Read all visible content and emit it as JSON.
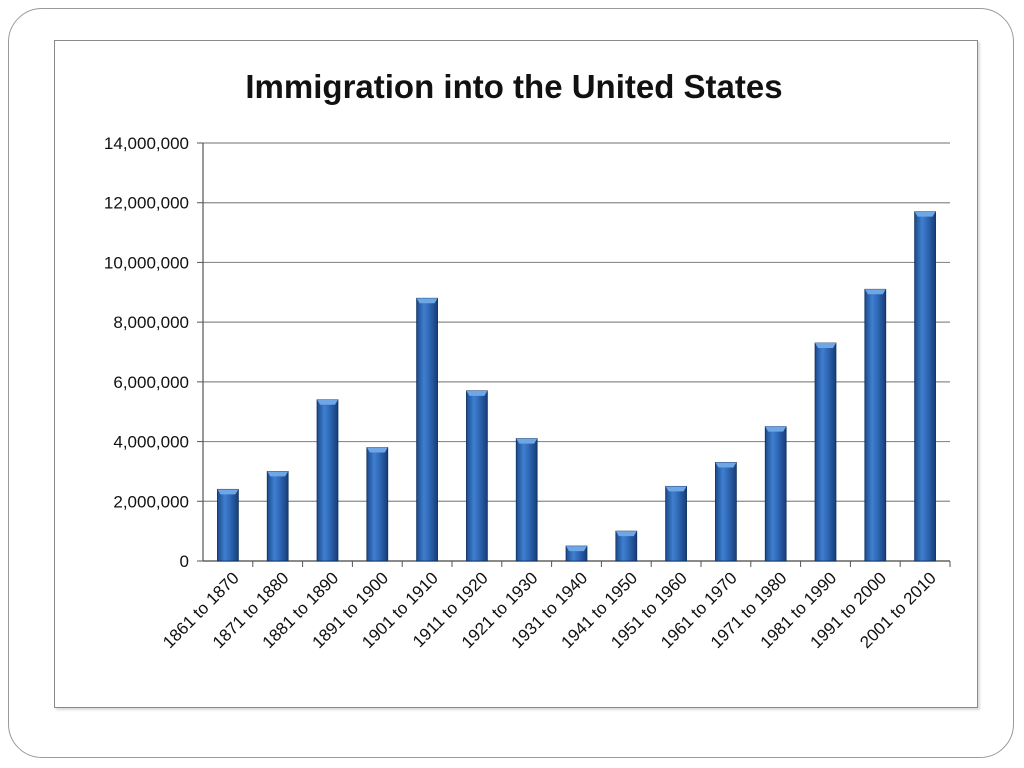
{
  "chart_data": {
    "type": "bar",
    "title": "Immigration into the United States",
    "xlabel": "",
    "ylabel": "",
    "ylim": [
      0,
      14000000
    ],
    "yticks": [
      0,
      2000000,
      4000000,
      6000000,
      8000000,
      10000000,
      12000000,
      14000000
    ],
    "ytick_labels": [
      "0",
      "2,000,000",
      "4,000,000",
      "6,000,000",
      "8,000,000",
      "10,000,000",
      "12,000,000",
      "14,000,000"
    ],
    "grid": true,
    "categories": [
      "1861 to 1870",
      "1871 to 1880",
      "1881 to 1890",
      "1891 to 1900",
      "1901 to 1910",
      "1911 to 1920",
      "1921 to 1930",
      "1931 to 1940",
      "1941 to 1950",
      "1951 to 1960",
      "1961 to 1970",
      "1971 to 1980",
      "1981 to 1990",
      "1991 to 2000",
      "2001 to 2010"
    ],
    "values": [
      2400000,
      3000000,
      5400000,
      3800000,
      8800000,
      5700000,
      4100000,
      500000,
      1000000,
      2500000,
      3300000,
      4500000,
      7300000,
      9100000,
      11700000
    ],
    "bar_color": "#2a62b0"
  }
}
